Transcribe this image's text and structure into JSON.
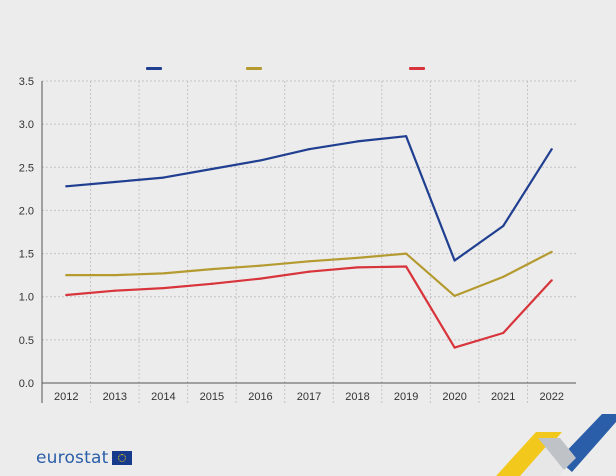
{
  "chart_data": {
    "type": "line",
    "title": "",
    "xlabel": "",
    "ylabel": "",
    "categories": [
      "2012",
      "2013",
      "2014",
      "2015",
      "2016",
      "2017",
      "2018",
      "2019",
      "2020",
      "2021",
      "2022"
    ],
    "ylim": [
      0,
      3.5
    ],
    "yticks": [
      "0.0",
      "0.5",
      "1.0",
      "1.5",
      "2.0",
      "2.5",
      "3.0",
      "3.5"
    ],
    "grid": true,
    "legend_position": "top",
    "series": [
      {
        "name": "",
        "color": "#203f91",
        "values": [
          2.28,
          2.33,
          2.38,
          2.48,
          2.58,
          2.71,
          2.8,
          2.86,
          1.42,
          1.82,
          2.71
        ]
      },
      {
        "name": "",
        "color": "#b49a2f",
        "values": [
          1.25,
          1.25,
          1.27,
          1.32,
          1.36,
          1.41,
          1.45,
          1.5,
          1.01,
          1.23,
          1.52
        ]
      },
      {
        "name": "",
        "color": "#d8343b",
        "values": [
          1.02,
          1.07,
          1.1,
          1.15,
          1.21,
          1.29,
          1.34,
          1.35,
          0.41,
          0.58,
          1.19
        ]
      }
    ]
  },
  "branding": {
    "logo_text": "eurostat",
    "logo_color": "#2a5ea8",
    "flag_icon": "eu-flag-icon"
  }
}
